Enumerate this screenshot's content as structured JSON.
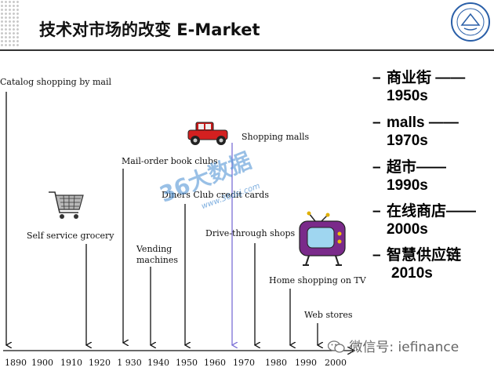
{
  "title": "技术对市场的改变 E-Market",
  "timeline": {
    "events": [
      {
        "label": "Catalog shopping by mail"
      },
      {
        "label": "Self service grocery"
      },
      {
        "label": "Mail-order book clubs"
      },
      {
        "label": "Vending machines"
      },
      {
        "label": "Diners Club credit cards"
      },
      {
        "label": "Shopping malls"
      },
      {
        "label": "Drive-through shops"
      },
      {
        "label": "Home shopping on TV"
      },
      {
        "label": "Web stores"
      }
    ],
    "years": [
      "1890",
      "1900",
      "1910",
      "1920",
      "1 930",
      "1940",
      "1950",
      "1960",
      "1970",
      "1980",
      "1990",
      "2000"
    ]
  },
  "eras": [
    {
      "bullet": "–",
      "name": "商业街 ——",
      "decade": "1950s"
    },
    {
      "bullet": "–",
      "name": "malls ——",
      "decade": "1970s"
    },
    {
      "bullet": "–",
      "name": "超市——",
      "decade": "1990s"
    },
    {
      "bullet": "–",
      "name": "在线商店——",
      "decade": "2000s"
    },
    {
      "bullet": "–",
      "name": "智慧供应链",
      "decade": "2010s"
    }
  ],
  "watermark": {
    "text": "36大数据",
    "url": "www.36dsj.com"
  },
  "wechat": {
    "text": "微信号: iefinance"
  },
  "icons": {
    "logo": "university-seal-icon",
    "cart": "shopping-cart-icon",
    "car": "antique-car-icon",
    "tv": "cartoon-tv-icon"
  },
  "colors": {
    "accent": "#2255a0",
    "arrow": "#111111",
    "mall_arrow": "#7b6fd6"
  }
}
